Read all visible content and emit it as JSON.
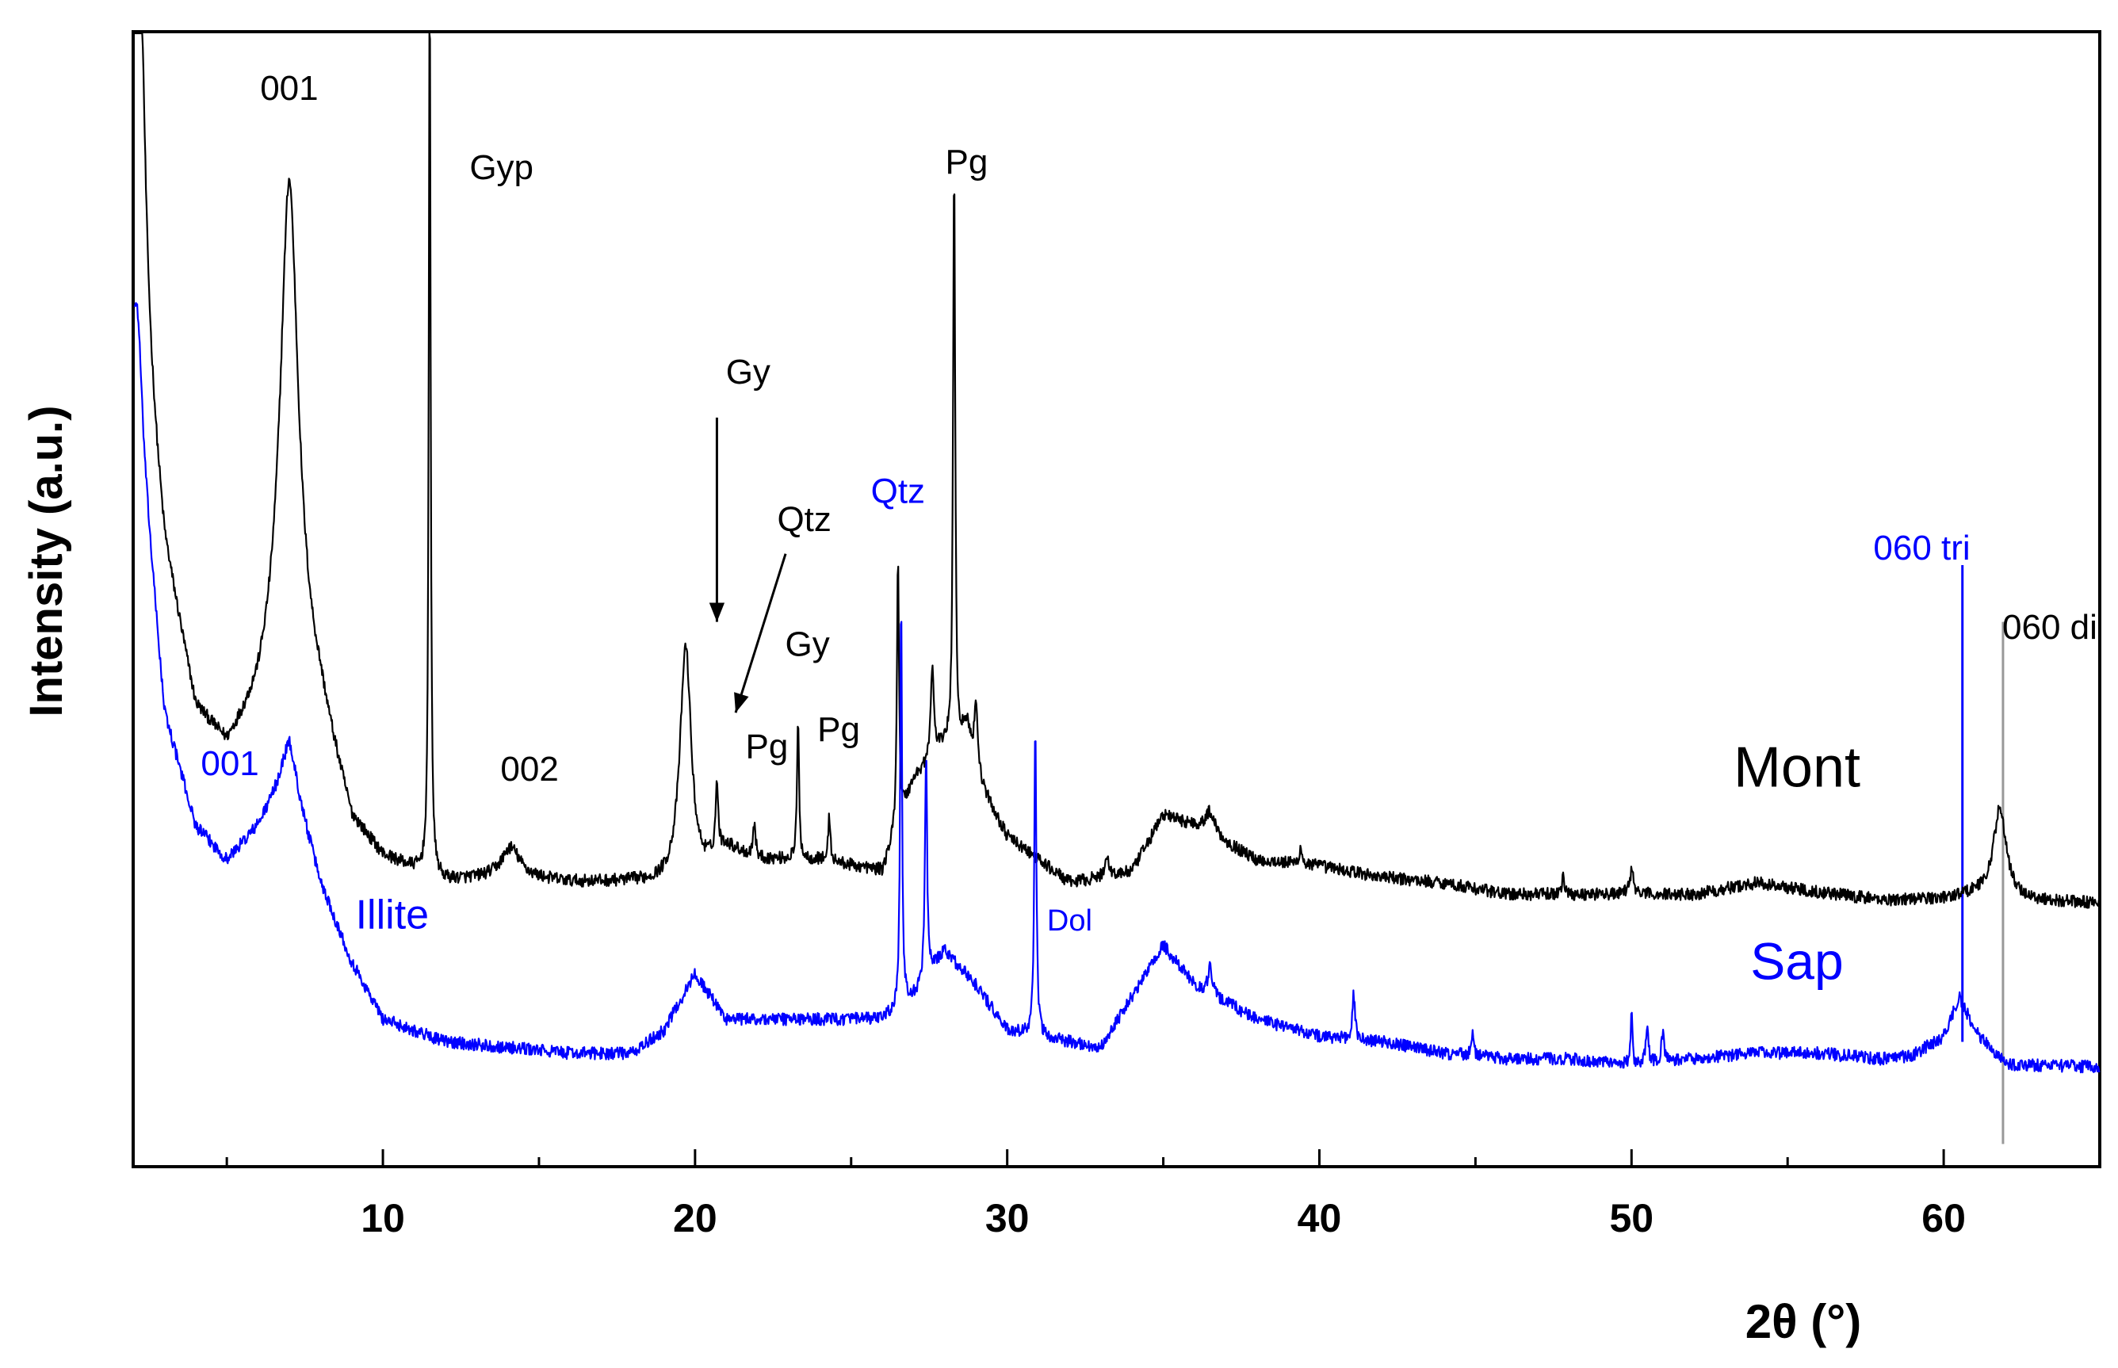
{
  "chart_data": {
    "type": "line",
    "title": "",
    "xlabel": "2θ (°)",
    "ylabel": "Intensity (a.u.)",
    "xlim": [
      2,
      65
    ],
    "ylim": [
      0,
      100
    ],
    "x_ticks": [
      10,
      20,
      30,
      40,
      50,
      60
    ],
    "x_tick_labels": [
      "10",
      "20",
      "30",
      "40",
      "50",
      "60"
    ],
    "y_ticks_shown": false,
    "colors": {
      "mont": "#000000",
      "sap": "#0000ff",
      "ref_line": "#999999"
    },
    "series": [
      {
        "name": "Mont",
        "color": "#000000",
        "baseline": [
          [
            2,
            80
          ],
          [
            3,
            54
          ],
          [
            4,
            40
          ],
          [
            5,
            36.5
          ],
          [
            6,
            40
          ],
          [
            7,
            46
          ],
          [
            8,
            40
          ],
          [
            9,
            30
          ],
          [
            10,
            27
          ],
          [
            12,
            25
          ],
          [
            14,
            25.5
          ],
          [
            16,
            25
          ],
          [
            18,
            25
          ],
          [
            19,
            24.8
          ],
          [
            20,
            24.8
          ],
          [
            21,
            28
          ],
          [
            22,
            27
          ],
          [
            24,
            27
          ],
          [
            26,
            26
          ],
          [
            27,
            34
          ],
          [
            28,
            37
          ],
          [
            29,
            34
          ],
          [
            30,
            29
          ],
          [
            32,
            25
          ],
          [
            34,
            26
          ],
          [
            35,
            31
          ],
          [
            36,
            30
          ],
          [
            38,
            27
          ],
          [
            40,
            26.5
          ],
          [
            42,
            25.5
          ],
          [
            44,
            25
          ],
          [
            46,
            24
          ],
          [
            50,
            24
          ],
          [
            52,
            24
          ],
          [
            54,
            25
          ],
          [
            56,
            24.2
          ],
          [
            58,
            23.5
          ],
          [
            60,
            23.6
          ],
          [
            61,
            24
          ],
          [
            62,
            23.5
          ],
          [
            65,
            23.2
          ]
        ],
        "peaks": [
          {
            "x": 2.2,
            "h": 35,
            "w": 0.2
          },
          {
            "x": 7.0,
            "h": 41,
            "w": 0.35
          },
          {
            "x": 11.5,
            "h": 80,
            "w": 0.035
          },
          {
            "x": 14.1,
            "h": 2.5,
            "w": 0.35
          },
          {
            "x": 19.7,
            "h": 21,
            "w": 0.22
          },
          {
            "x": 20.7,
            "h": 6,
            "w": 0.05
          },
          {
            "x": 21.9,
            "h": 3,
            "w": 0.05
          },
          {
            "x": 23.3,
            "h": 12,
            "w": 0.04
          },
          {
            "x": 24.3,
            "h": 4,
            "w": 0.04
          },
          {
            "x": 26.5,
            "h": 24,
            "w": 0.04
          },
          {
            "x": 27.6,
            "h": 8,
            "w": 0.06
          },
          {
            "x": 28.3,
            "h": 52,
            "w": 0.04
          },
          {
            "x": 28.7,
            "h": 4,
            "w": 0.2
          },
          {
            "x": 29.0,
            "h": 6,
            "w": 0.06
          },
          {
            "x": 33.2,
            "h": 2,
            "w": 0.06
          },
          {
            "x": 36.5,
            "h": 2,
            "w": 0.2
          },
          {
            "x": 39.4,
            "h": 1.5,
            "w": 0.05
          },
          {
            "x": 47.8,
            "h": 1.5,
            "w": 0.05
          },
          {
            "x": 50.0,
            "h": 2,
            "w": 0.08
          },
          {
            "x": 61.8,
            "h": 8,
            "w": 0.25
          }
        ],
        "noise": 0.55
      },
      {
        "name": "Sap",
        "color": "#0000ff",
        "baseline": [
          [
            2,
            72
          ],
          [
            3,
            40
          ],
          [
            4,
            30
          ],
          [
            5,
            27
          ],
          [
            6,
            30
          ],
          [
            7,
            35
          ],
          [
            8,
            25
          ],
          [
            9,
            18
          ],
          [
            10,
            13
          ],
          [
            12,
            11
          ],
          [
            14,
            10.5
          ],
          [
            16,
            10
          ],
          [
            18,
            10
          ],
          [
            19,
            12
          ],
          [
            20,
            17
          ],
          [
            21,
            13
          ],
          [
            22,
            13
          ],
          [
            24,
            13
          ],
          [
            26,
            13
          ],
          [
            27,
            15
          ],
          [
            28,
            19
          ],
          [
            29,
            16
          ],
          [
            30,
            12
          ],
          [
            32,
            11
          ],
          [
            33,
            10.5
          ],
          [
            34,
            15
          ],
          [
            35,
            19.5
          ],
          [
            36,
            16
          ],
          [
            38,
            13
          ],
          [
            40,
            11.5
          ],
          [
            42,
            11
          ],
          [
            44,
            10
          ],
          [
            46,
            9.5
          ],
          [
            48,
            9.5
          ],
          [
            50,
            9
          ],
          [
            52,
            9.5
          ],
          [
            54,
            10
          ],
          [
            56,
            10
          ],
          [
            58,
            9.5
          ],
          [
            59,
            9.8
          ],
          [
            60,
            11.5
          ],
          [
            60.5,
            15
          ],
          [
            61,
            12
          ],
          [
            62,
            9
          ],
          [
            65,
            8.8
          ]
        ],
        "peaks": [
          {
            "x": 2.15,
            "h": 8,
            "w": 0.15
          },
          {
            "x": 7.0,
            "h": 2.5,
            "w": 0.3
          },
          {
            "x": 26.6,
            "h": 36,
            "w": 0.035
          },
          {
            "x": 27.4,
            "h": 20,
            "w": 0.04
          },
          {
            "x": 30.9,
            "h": 27,
            "w": 0.04
          },
          {
            "x": 36.5,
            "h": 2.5,
            "w": 0.08
          },
          {
            "x": 41.1,
            "h": 4,
            "w": 0.05
          },
          {
            "x": 44.9,
            "h": 2,
            "w": 0.05
          },
          {
            "x": 50.0,
            "h": 5,
            "w": 0.03
          },
          {
            "x": 50.5,
            "h": 3,
            "w": 0.05
          },
          {
            "x": 51.0,
            "h": 2.5,
            "w": 0.05
          }
        ],
        "noise": 0.55
      }
    ],
    "reference_lines": [
      {
        "label": "060 tri",
        "x": 60.6,
        "color": "#0000ff",
        "from_y": 11,
        "to_y": 53
      },
      {
        "label": "060 di",
        "x": 61.9,
        "color": "#999999",
        "from_y": 2,
        "to_y": 48
      }
    ],
    "arrows": [
      {
        "target": "Gy",
        "from": [
          20.7,
          66
        ],
        "to": [
          20.7,
          48
        ]
      },
      {
        "target": "Qtz",
        "from": [
          22.9,
          54
        ],
        "to": [
          21.3,
          40
        ]
      }
    ],
    "annotations": [
      {
        "text": "001",
        "x": 7.0,
        "y": 94,
        "color": "#000000",
        "size": 44
      },
      {
        "text": "Gyp",
        "x": 13.8,
        "y": 87,
        "color": "#000000",
        "size": 44
      },
      {
        "text": "002",
        "x": 14.7,
        "y": 34,
        "color": "#000000",
        "size": 44
      },
      {
        "text": "Gy",
        "x": 21.7,
        "y": 69,
        "color": "#000000",
        "size": 44
      },
      {
        "text": "Qtz",
        "x": 23.5,
        "y": 56,
        "color": "#000000",
        "size": 44
      },
      {
        "text": "Gy",
        "x": 23.6,
        "y": 45,
        "color": "#000000",
        "size": 44
      },
      {
        "text": "Pg",
        "x": 22.3,
        "y": 36,
        "color": "#000000",
        "size": 44
      },
      {
        "text": "Pg",
        "x": 24.6,
        "y": 37.5,
        "color": "#000000",
        "size": 44
      },
      {
        "text": "Pg",
        "x": 28.7,
        "y": 87.5,
        "color": "#000000",
        "size": 44
      },
      {
        "text": "Qtz",
        "x": 26.5,
        "y": 58.5,
        "color": "#0000ff",
        "size": 44
      },
      {
        "text": "001",
        "x": 5.1,
        "y": 34.5,
        "color": "#0000ff",
        "size": 44
      },
      {
        "text": "Illite",
        "x": 10.3,
        "y": 21,
        "color": "#0000ff",
        "size": 52
      },
      {
        "text": "Dol",
        "x": 32.0,
        "y": 20.8,
        "color": "#0000ff",
        "size": 38
      },
      {
        "text": "Mont",
        "x": 55.3,
        "y": 33.5,
        "color": "#000000",
        "size": 72
      },
      {
        "text": "Sap",
        "x": 55.3,
        "y": 16.5,
        "color": "#0000ff",
        "size": 66
      },
      {
        "text": "060 tri",
        "x": 59.3,
        "y": 53.5,
        "color": "#0000ff",
        "size": 44
      },
      {
        "text": "060 di",
        "x": 63.4,
        "y": 46.5,
        "color": "#000000",
        "size": 44
      }
    ]
  }
}
